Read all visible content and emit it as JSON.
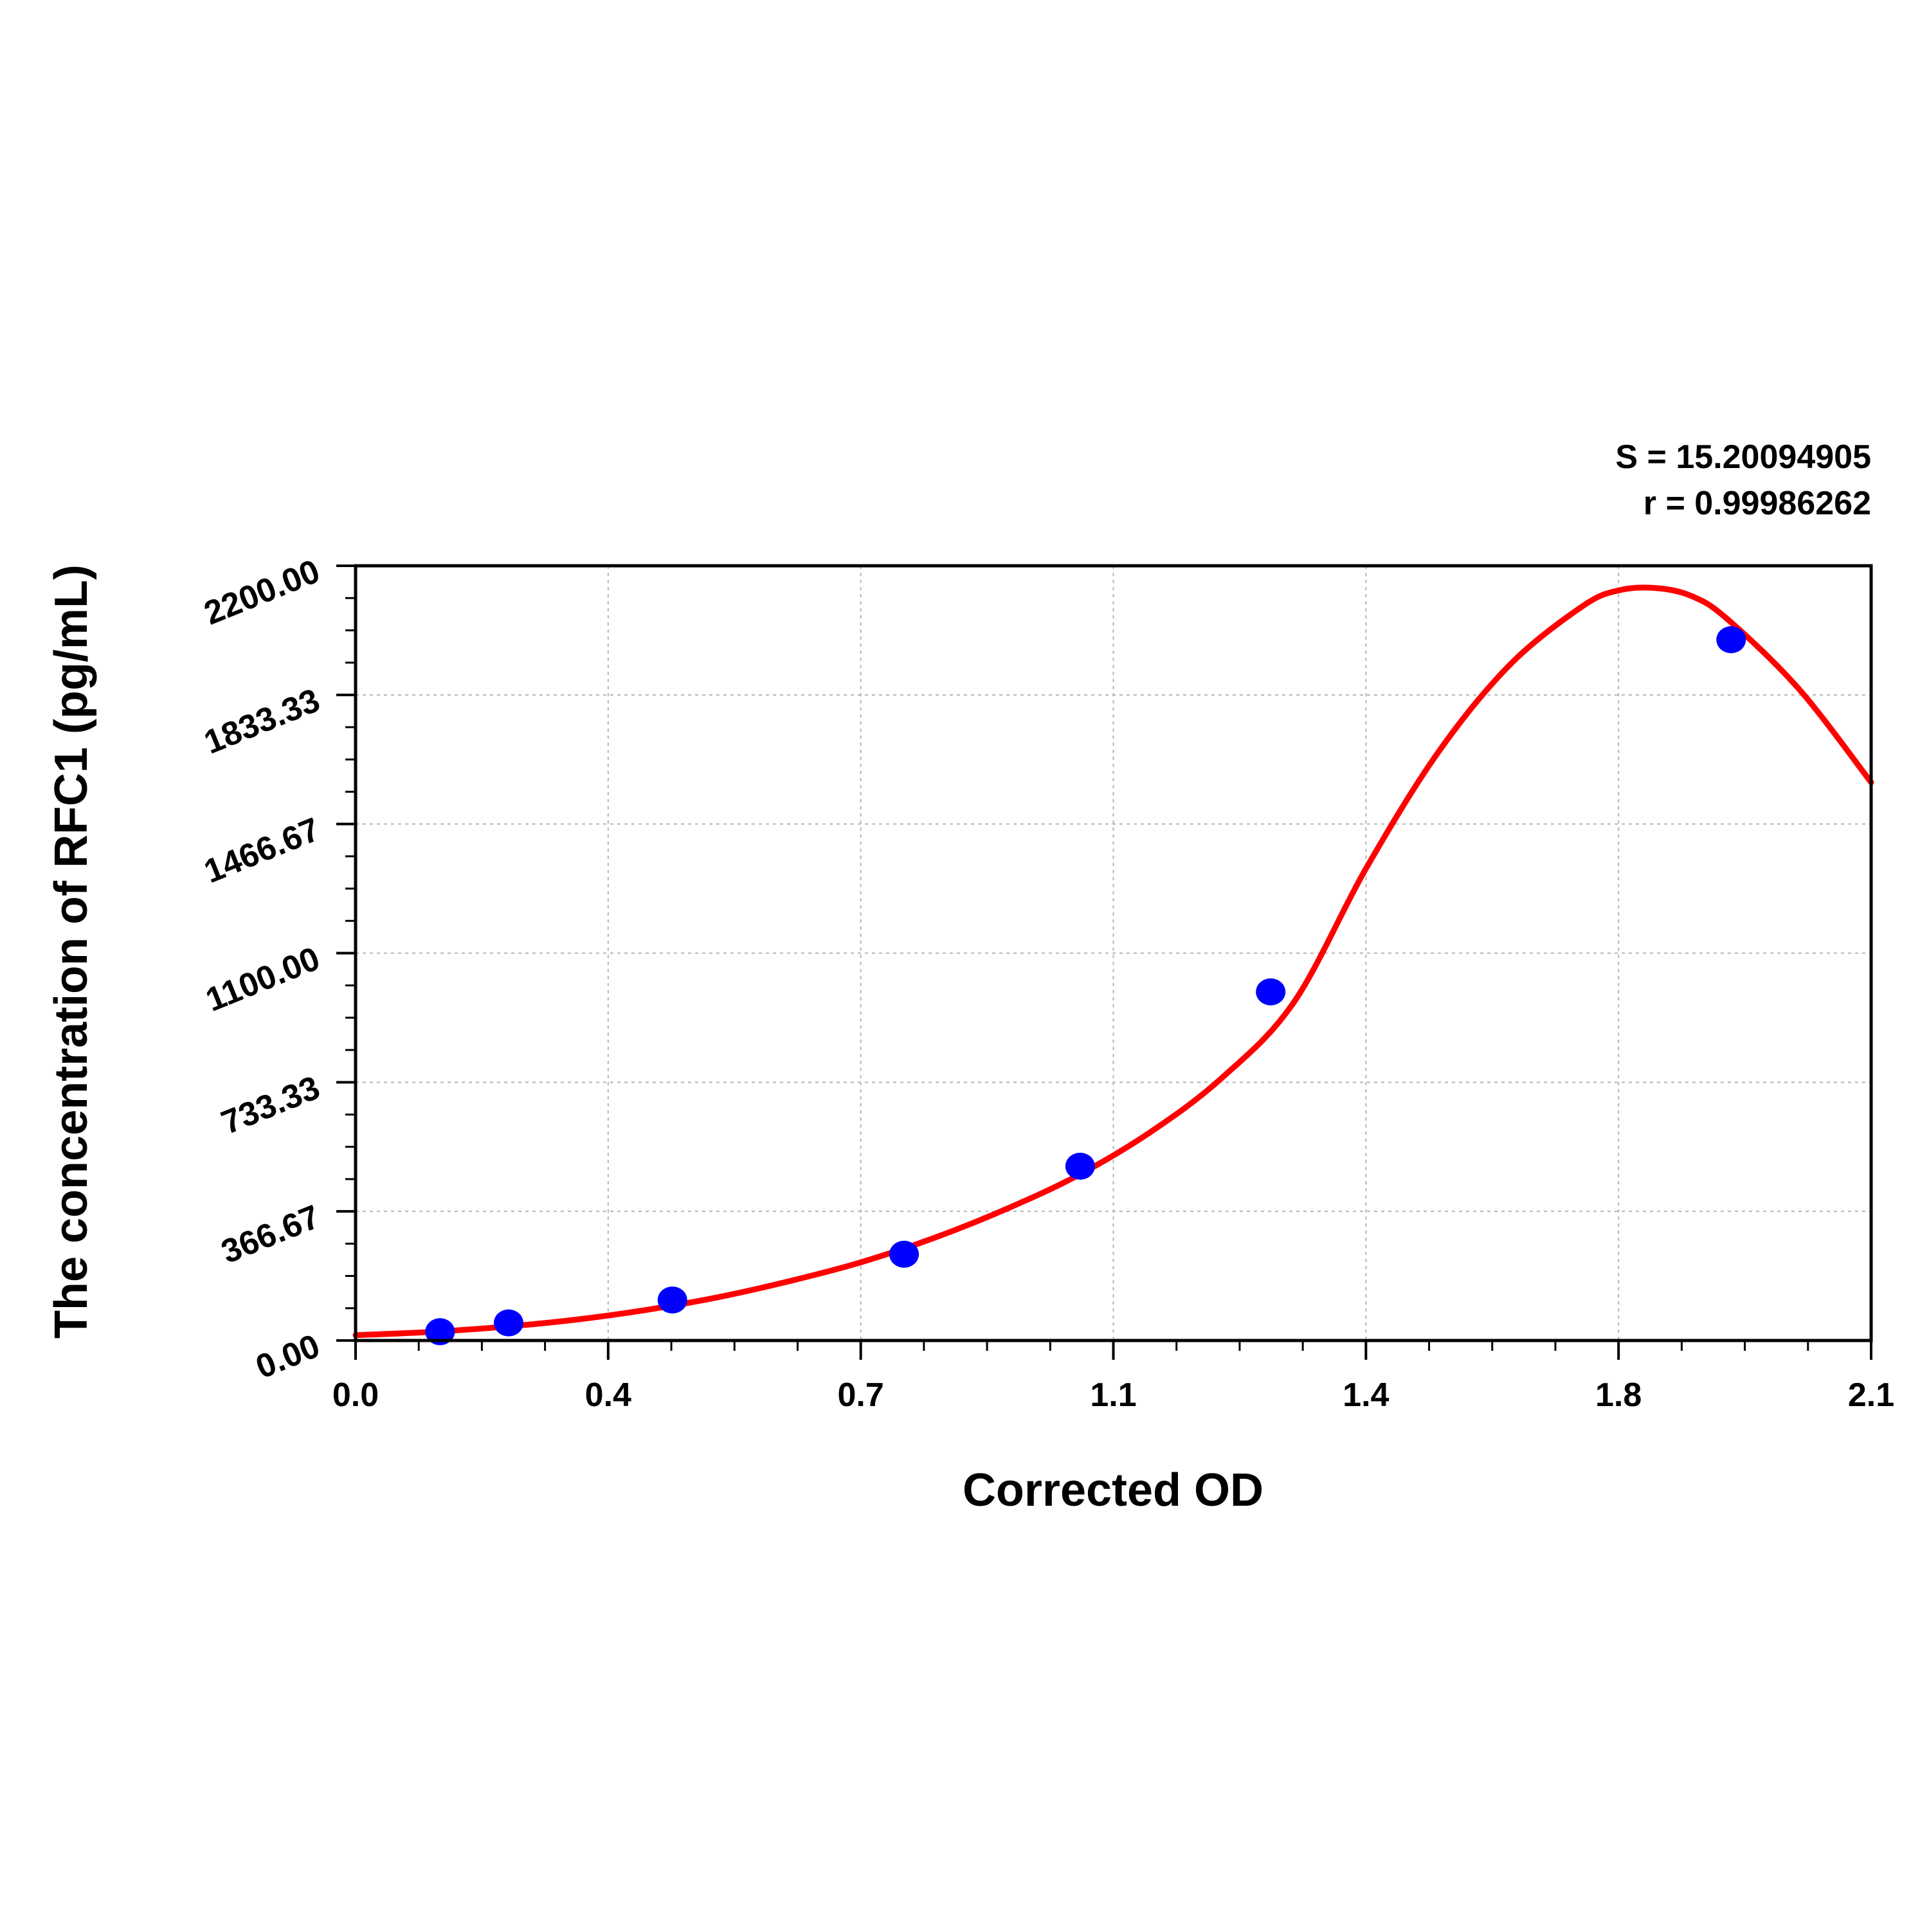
{
  "chart_data": {
    "type": "scatter",
    "title": "",
    "xlabel": "Corrected OD",
    "ylabel": "The concentration of RFC1 (pg/mL)",
    "xlim": [
      0.0,
      2.1
    ],
    "ylim": [
      0.0,
      2200.0
    ],
    "x_ticks": [
      "0.0",
      "0.4",
      "0.7",
      "1.1",
      "1.4",
      "1.8",
      "2.1"
    ],
    "x_tick_values": [
      0.0,
      0.35,
      0.7,
      1.05,
      1.4,
      1.75,
      2.1
    ],
    "y_ticks": [
      "0.00",
      "366.67",
      "733.33",
      "1100.00",
      "1466.67",
      "1833.33",
      "2200.00"
    ],
    "y_tick_values": [
      0.0,
      366.67,
      733.33,
      1100.0,
      1466.67,
      1833.33,
      2200.0
    ],
    "grid": true,
    "annotations": [
      "S = 15.20094905",
      "r = 0.99986262"
    ],
    "series": [
      {
        "type": "scatter",
        "color": "#0000ff",
        "points": [
          {
            "x": 0.117,
            "y": 25
          },
          {
            "x": 0.212,
            "y": 50
          },
          {
            "x": 0.439,
            "y": 115
          },
          {
            "x": 0.76,
            "y": 245
          },
          {
            "x": 1.004,
            "y": 495
          },
          {
            "x": 1.268,
            "y": 990
          },
          {
            "x": 1.906,
            "y": 1990
          }
        ]
      },
      {
        "type": "line",
        "color": "#ff0000",
        "points": [
          {
            "x": 0.0,
            "y": 15
          },
          {
            "x": 0.1,
            "y": 24
          },
          {
            "x": 0.2,
            "y": 38
          },
          {
            "x": 0.3,
            "y": 58
          },
          {
            "x": 0.4,
            "y": 86
          },
          {
            "x": 0.5,
            "y": 122
          },
          {
            "x": 0.6,
            "y": 168
          },
          {
            "x": 0.7,
            "y": 222
          },
          {
            "x": 0.8,
            "y": 290
          },
          {
            "x": 0.9,
            "y": 372
          },
          {
            "x": 1.0,
            "y": 468
          },
          {
            "x": 1.1,
            "y": 590
          },
          {
            "x": 1.2,
            "y": 745
          },
          {
            "x": 1.3,
            "y": 960
          },
          {
            "x": 1.4,
            "y": 1340
          },
          {
            "x": 1.5,
            "y": 1670
          },
          {
            "x": 1.6,
            "y": 1920
          },
          {
            "x": 1.7,
            "y": 2085
          },
          {
            "x": 1.75,
            "y": 2130
          },
          {
            "x": 1.8,
            "y": 2137
          },
          {
            "x": 1.85,
            "y": 2115
          },
          {
            "x": 1.9,
            "y": 2050
          },
          {
            "x": 2.0,
            "y": 1850
          },
          {
            "x": 2.1,
            "y": 1585
          }
        ]
      }
    ]
  }
}
